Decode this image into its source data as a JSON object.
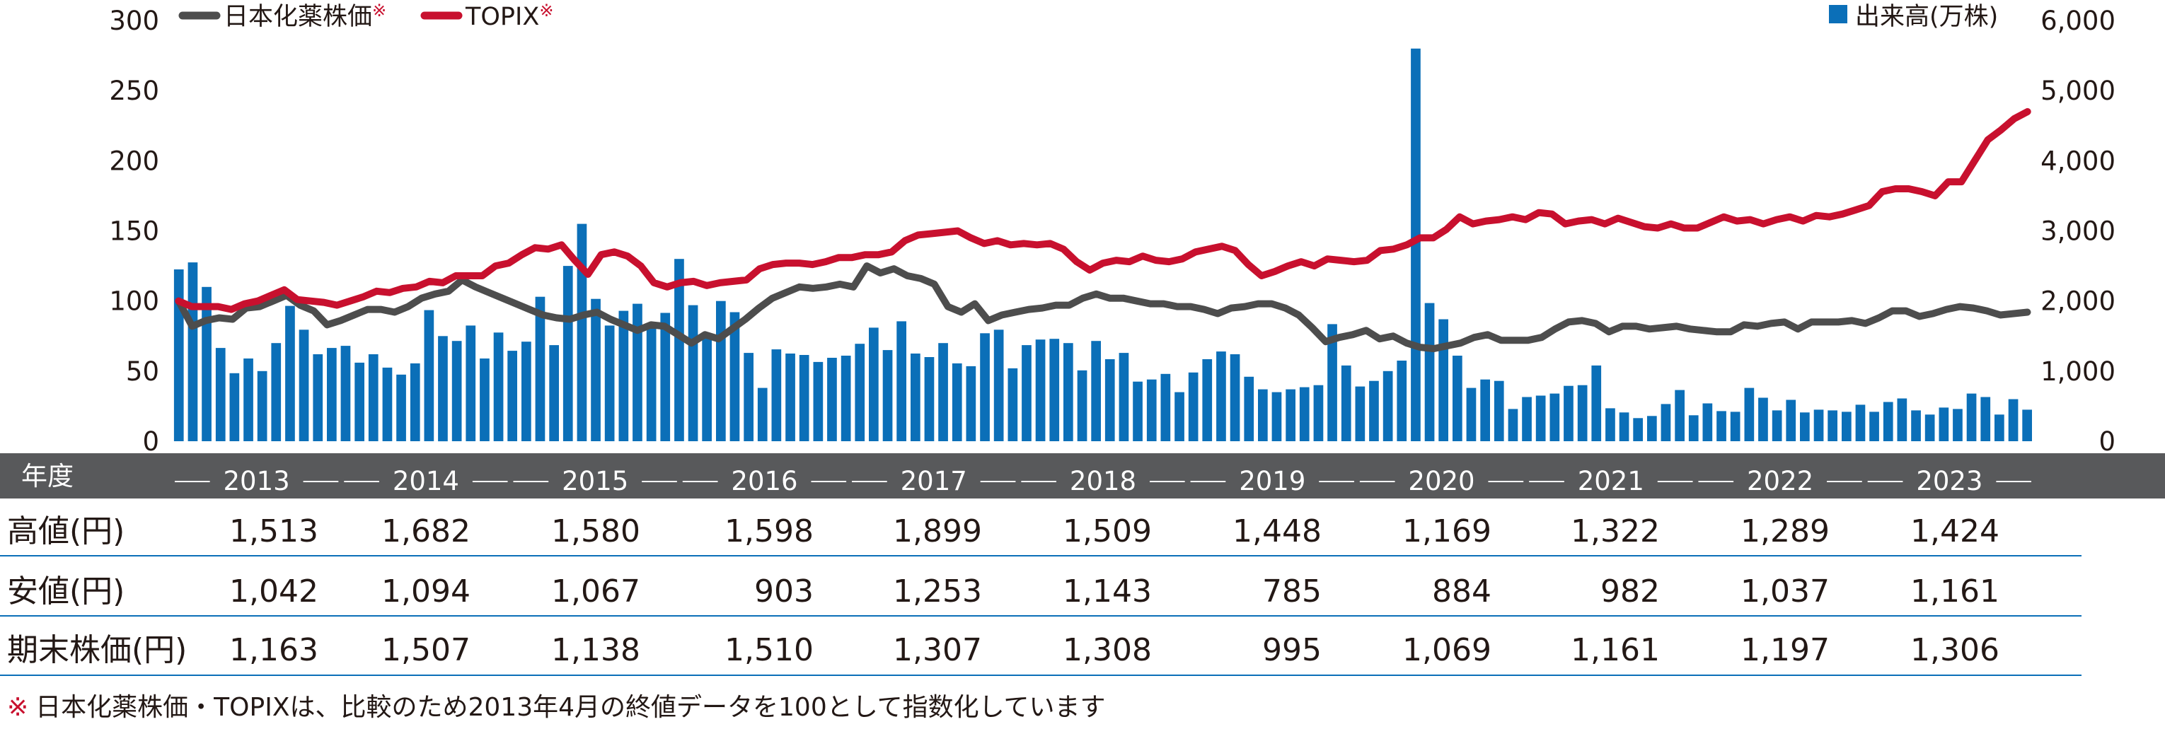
{
  "chart_data": {
    "type": "combo",
    "left_axis": {
      "ticks": [
        "300",
        "250",
        "200",
        "150",
        "100",
        "50",
        "0"
      ],
      "ylim": [
        0,
        300
      ]
    },
    "right_axis": {
      "ticks": [
        "6,000",
        "5,000",
        "4,000",
        "3,000",
        "2,000",
        "1,000",
        "0"
      ],
      "ylim": [
        0,
        6000
      ],
      "title": "出来高(万株)"
    },
    "legend": [
      {
        "name": "日本化薬株価",
        "mark": "※",
        "color": "#4d4d4d",
        "type": "line"
      },
      {
        "name": "TOPIX",
        "mark": "※",
        "color": "#c8102e",
        "type": "line"
      },
      {
        "name": "出来高(万株)",
        "color": "#0b6fb8",
        "type": "bar"
      }
    ],
    "x_row_label": "年度",
    "fiscal_years": [
      "2013",
      "2014",
      "2015",
      "2016",
      "2017",
      "2018",
      "2019",
      "2020",
      "2021",
      "2022",
      "2023"
    ],
    "series": [
      {
        "name": "日本化薬株価",
        "color": "#4d4d4d",
        "values": [
          100,
          82,
          86,
          88,
          87,
          95,
          96,
          100,
          104,
          97,
          93,
          83,
          86,
          90,
          94,
          94,
          92,
          96,
          102,
          105,
          107,
          115,
          110,
          106,
          102,
          98,
          94,
          90,
          88,
          87,
          90,
          92,
          87,
          83,
          79,
          83,
          82,
          76,
          70,
          76,
          73,
          80,
          87,
          95,
          102,
          106,
          110,
          109,
          110,
          112,
          110,
          125,
          120,
          123,
          118,
          116,
          112,
          96,
          92,
          98,
          86,
          90,
          92,
          94,
          95,
          97,
          97,
          102,
          105,
          102,
          102,
          100,
          98,
          98,
          96,
          96,
          94,
          91,
          95,
          96,
          98,
          98,
          95,
          90,
          81,
          71,
          74,
          76,
          79,
          73,
          75,
          70,
          67,
          66,
          68,
          70,
          74,
          76,
          72,
          72,
          72,
          74,
          80,
          85,
          86,
          84,
          78,
          82,
          82,
          80,
          81,
          82,
          80,
          79,
          78,
          78,
          83,
          82,
          84,
          85,
          80,
          85,
          85,
          85,
          86,
          84,
          88,
          93,
          93,
          89,
          91,
          94,
          96,
          95,
          93,
          90,
          91,
          92
        ]
      },
      {
        "name": "TOPIX",
        "color": "#c8102e",
        "values": [
          100,
          96,
          96,
          96,
          94,
          98,
          100,
          104,
          108,
          101,
          100,
          99,
          97,
          100,
          103,
          107,
          106,
          109,
          110,
          114,
          113,
          118,
          118,
          118,
          125,
          127,
          133,
          138,
          137,
          140,
          129,
          119,
          133,
          135,
          132,
          125,
          113,
          110,
          113,
          114,
          111,
          113,
          114,
          115,
          123,
          126,
          127,
          127,
          126,
          128,
          131,
          131,
          133,
          133,
          135,
          143,
          147,
          148,
          149,
          150,
          145,
          141,
          143,
          140,
          141,
          140,
          141,
          137,
          128,
          122,
          127,
          129,
          128,
          132,
          129,
          128,
          130,
          135,
          137,
          139,
          136,
          126,
          118,
          121,
          125,
          128,
          125,
          130,
          129,
          128,
          129,
          136,
          137,
          140,
          145,
          145,
          151,
          160,
          155,
          157,
          158,
          160,
          158,
          163,
          162,
          155,
          157,
          158,
          155,
          159,
          156,
          153,
          152,
          155,
          152,
          152,
          156,
          160,
          157,
          158,
          155,
          158,
          160,
          157,
          161,
          160,
          162,
          165,
          168,
          178,
          180,
          180,
          178,
          175,
          185,
          185,
          200,
          215,
          222,
          230,
          235
        ]
      },
      {
        "name": "出来高(万株)",
        "color": "#0b6fb8",
        "values": [
          2450,
          2550,
          2200,
          1330,
          970,
          1180,
          1000,
          1400,
          1930,
          1590,
          1240,
          1330,
          1360,
          1120,
          1240,
          1050,
          950,
          1110,
          1870,
          1500,
          1430,
          1650,
          1180,
          1550,
          1290,
          1420,
          2060,
          1370,
          2500,
          3100,
          2030,
          1650,
          1860,
          1960,
          1630,
          1830,
          2600,
          1940,
          1540,
          2000,
          1840,
          1260,
          760,
          1310,
          1250,
          1230,
          1130,
          1190,
          1220,
          1390,
          1620,
          1300,
          1710,
          1250,
          1200,
          1400,
          1110,
          1070,
          1540,
          1590,
          1040,
          1370,
          1450,
          1460,
          1400,
          1010,
          1430,
          1170,
          1260,
          850,
          880,
          960,
          700,
          980,
          1170,
          1280,
          1240,
          920,
          740,
          700,
          740,
          770,
          800,
          1670,
          1080,
          780,
          860,
          1000,
          1150,
          5600,
          1970,
          1740,
          1220,
          760,
          880,
          860,
          460,
          630,
          650,
          680,
          790,
          800,
          1080,
          470,
          410,
          330,
          360,
          530,
          730,
          370,
          540,
          430,
          420,
          760,
          620,
          440,
          590,
          410,
          450,
          440,
          420,
          520,
          420,
          560,
          610,
          440,
          380,
          480,
          460,
          680,
          630,
          380,
          600,
          450
        ]
      },
      {
        "name": "高値(円)",
        "values": [
          "1,513",
          "1,682",
          "1,580",
          "1,598",
          "1,899",
          "1,509",
          "1,448",
          "1,169",
          "1,322",
          "1,289",
          "1,424"
        ]
      },
      {
        "name": "安値(円)",
        "values": [
          "1,042",
          "1,094",
          "1,067",
          "903",
          "1,253",
          "1,143",
          "785",
          "884",
          "982",
          "1,037",
          "1,161"
        ]
      },
      {
        "name": "期末株価(円)",
        "values": [
          "1,163",
          "1,507",
          "1,138",
          "1,510",
          "1,307",
          "1,308",
          "995",
          "1,069",
          "1,161",
          "1,197",
          "1,306"
        ]
      }
    ]
  },
  "table": {
    "rows": [
      {
        "label": "高値(円)",
        "series_index": 3
      },
      {
        "label": "安値(円)",
        "series_index": 4
      },
      {
        "label": "期末株価(円)",
        "series_index": 5
      }
    ]
  },
  "footnote": {
    "mark": "※",
    "text": "日本化薬株価・TOPIXは、比較のため2013年4月の終値データを100として指数化しています"
  }
}
